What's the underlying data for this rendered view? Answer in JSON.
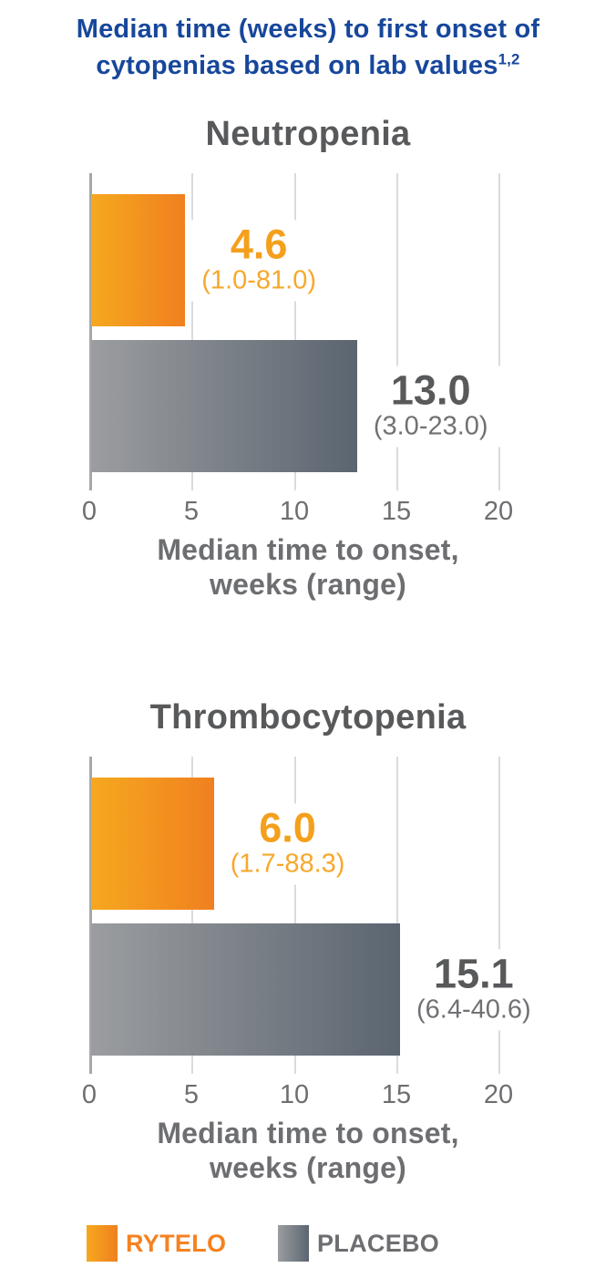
{
  "header": {
    "title_line1": "Median time (weeks) to first onset of",
    "title_line2": "cytopenias based on lab values",
    "title_superscript": "1,2"
  },
  "chart_data": [
    {
      "type": "bar",
      "orientation": "horizontal",
      "title": "Neutropenia",
      "categories": [
        "RYTELO",
        "PLACEBO"
      ],
      "values": [
        4.6,
        13.0
      ],
      "bars": [
        {
          "name": "RYTELO",
          "weeks": 4.6,
          "value_label": "4.6",
          "range_label": "(1.0-81.0)"
        },
        {
          "name": "PLACEBO",
          "weeks": 13.0,
          "value_label": "13.0",
          "range_label": "(3.0-23.0)"
        }
      ],
      "xticks": [
        "0",
        "5",
        "10",
        "15",
        "20"
      ],
      "xlim": [
        0,
        20
      ],
      "xlabel_line1": "Median time to onset,",
      "xlabel_line2": "weeks (range)",
      "grid": true,
      "legend_position": "bottom"
    },
    {
      "type": "bar",
      "orientation": "horizontal",
      "title": "Thrombocytopenia",
      "categories": [
        "RYTELO",
        "PLACEBO"
      ],
      "values": [
        6.0,
        15.1
      ],
      "bars": [
        {
          "name": "RYTELO",
          "weeks": 6.0,
          "value_label": "6.0",
          "range_label": "(1.7-88.3)"
        },
        {
          "name": "PLACEBO",
          "weeks": 15.1,
          "value_label": "15.1",
          "range_label": "(6.4-40.6)"
        }
      ],
      "xticks": [
        "0",
        "5",
        "10",
        "15",
        "20"
      ],
      "xlim": [
        0,
        20
      ],
      "xlabel_line1": "Median time to onset,",
      "xlabel_line2": "weeks (range)",
      "grid": true,
      "legend_position": "bottom"
    }
  ],
  "legend": {
    "items": [
      {
        "label": "RYTELO",
        "color": "#F5A020"
      },
      {
        "label": "PLACEBO",
        "color": "#9B9DA0"
      }
    ]
  },
  "colors": {
    "title_blue": "#17479B",
    "rytelo_gradient_start": "#F6A81F",
    "rytelo_gradient_end": "#F0801F",
    "placebo_gradient_start": "#9B9DA0",
    "placebo_gradient_end": "#5B6570",
    "heading_gray": "#58595B",
    "axis_label_gray": "#6D6E71",
    "gridline_gray": "#DADBDC",
    "zero_axis_gray": "#A5A7AA"
  }
}
